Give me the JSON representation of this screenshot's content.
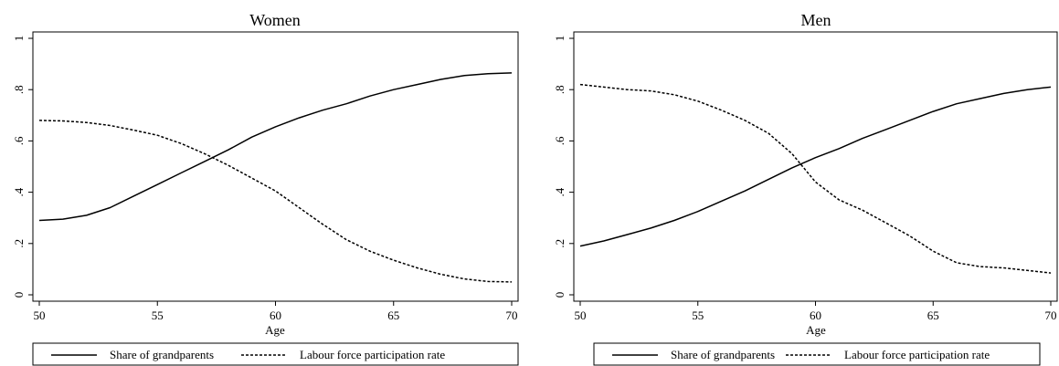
{
  "chart_data": [
    {
      "type": "line",
      "title": "Women",
      "xlabel": "Age",
      "ylabel": "",
      "xlim": [
        50,
        70
      ],
      "ylim": [
        0,
        1
      ],
      "xticks": [
        50,
        55,
        60,
        65,
        70
      ],
      "xtick_labels": [
        "50",
        "55",
        "60",
        "65",
        "70"
      ],
      "yticks": [
        0,
        0.2,
        0.4,
        0.6,
        0.8,
        1
      ],
      "ytick_labels": [
        "0",
        ".2",
        ".4",
        ".6",
        ".8",
        "1"
      ],
      "grid": false,
      "legend": "bottom",
      "series": [
        {
          "name": "Share of grandparents",
          "style": "solid",
          "x": [
            50,
            51,
            52,
            53,
            54,
            55,
            56,
            57,
            58,
            59,
            60,
            61,
            62,
            63,
            64,
            65,
            66,
            67,
            68,
            69,
            70
          ],
          "values": [
            0.29,
            0.295,
            0.31,
            0.34,
            0.385,
            0.43,
            0.475,
            0.52,
            0.565,
            0.615,
            0.655,
            0.69,
            0.72,
            0.745,
            0.775,
            0.8,
            0.82,
            0.84,
            0.855,
            0.862,
            0.865
          ]
        },
        {
          "name": "Labour force participation rate",
          "style": "dashed",
          "x": [
            50,
            51,
            52,
            53,
            54,
            55,
            56,
            57,
            58,
            59,
            60,
            61,
            62,
            63,
            64,
            65,
            66,
            67,
            68,
            69,
            70
          ],
          "values": [
            0.68,
            0.678,
            0.672,
            0.66,
            0.642,
            0.622,
            0.59,
            0.55,
            0.505,
            0.455,
            0.405,
            0.34,
            0.275,
            0.215,
            0.17,
            0.135,
            0.105,
            0.08,
            0.062,
            0.052,
            0.05
          ]
        }
      ]
    },
    {
      "type": "line",
      "title": "Men",
      "xlabel": "Age",
      "ylabel": "",
      "xlim": [
        50,
        70
      ],
      "ylim": [
        0,
        1
      ],
      "xticks": [
        50,
        55,
        60,
        65,
        70
      ],
      "xtick_labels": [
        "50",
        "55",
        "60",
        "65",
        "70"
      ],
      "yticks": [
        0,
        0.2,
        0.4,
        0.6,
        0.8,
        1
      ],
      "ytick_labels": [
        "0",
        ".2",
        ".4",
        ".6",
        ".8",
        "1"
      ],
      "grid": false,
      "legend": "bottom",
      "series": [
        {
          "name": "Share of grandparents",
          "style": "solid",
          "x": [
            50,
            51,
            52,
            53,
            54,
            55,
            56,
            57,
            58,
            59,
            60,
            61,
            62,
            63,
            64,
            65,
            66,
            67,
            68,
            69,
            70
          ],
          "values": [
            0.19,
            0.21,
            0.235,
            0.26,
            0.29,
            0.325,
            0.365,
            0.405,
            0.45,
            0.495,
            0.535,
            0.57,
            0.61,
            0.645,
            0.68,
            0.715,
            0.745,
            0.765,
            0.785,
            0.8,
            0.81
          ]
        },
        {
          "name": "Labour force participation rate",
          "style": "dashed",
          "x": [
            50,
            51,
            52,
            53,
            54,
            55,
            56,
            57,
            58,
            59,
            60,
            61,
            62,
            63,
            64,
            65,
            66,
            67,
            68,
            69,
            70
          ],
          "values": [
            0.82,
            0.81,
            0.8,
            0.795,
            0.78,
            0.755,
            0.72,
            0.68,
            0.63,
            0.55,
            0.44,
            0.37,
            0.33,
            0.28,
            0.23,
            0.17,
            0.125,
            0.11,
            0.105,
            0.095,
            0.085
          ]
        }
      ]
    }
  ]
}
